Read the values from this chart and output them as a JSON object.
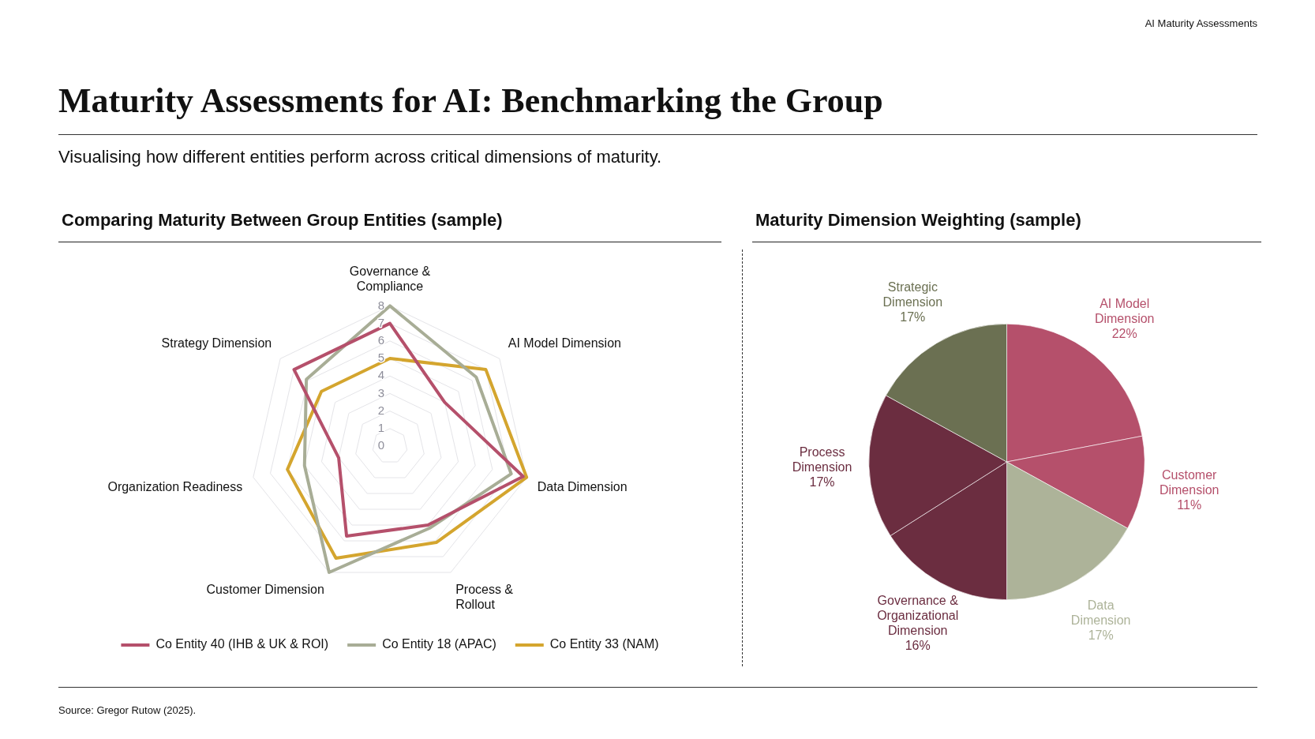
{
  "chart_data": [
    {
      "type": "radar",
      "title": "Comparing Maturity Between Group Entities (sample)",
      "annotations": [
        "AI Maturity Assessments",
        "Maturity Assessments for AI: Benchmarking the Group",
        "Visualising how different entities perform across critical dimensions of maturity.",
        "Source: Gregor Rutow (2025)."
      ],
      "categories": [
        "Governance & Compliance",
        "AI Model Dimension",
        "Data Dimension",
        "Process & Rollout",
        "Customer Dimension",
        "Organization Readiness",
        "Strategy Dimension"
      ],
      "series": [
        {
          "name": "Co Entity 40 (IHB & UK & ROI)",
          "color": "#b5506b",
          "values": [
            7,
            4,
            7.8,
            5,
            5.7,
            3,
            7
          ]
        },
        {
          "name": "Co Entity 18 (APAC)",
          "color": "#a8ad96",
          "values": [
            8,
            6.3,
            7.1,
            5.2,
            8,
            5,
            6.1
          ]
        },
        {
          "name": "Co Entity 33 (NAM)",
          "color": "#d4a52e",
          "values": [
            5,
            7,
            8,
            6.1,
            7.1,
            6,
            5
          ]
        }
      ],
      "ylim": [
        0,
        8
      ],
      "yticks": [
        0,
        1,
        2,
        3,
        4,
        5,
        6,
        7,
        8
      ],
      "grid": true,
      "legend": "bottom",
      "marker": "none",
      "line_style": "solid"
    },
    {
      "type": "pie",
      "title": "Maturity Dimension Weighting (sample)",
      "categories": [
        "AI Model Dimension",
        "Customer Dimension",
        "Data Dimension",
        "Governance & Organizational Dimension",
        "Process Dimension",
        "Strategic Dimension"
      ],
      "values": [
        22,
        11,
        17,
        16,
        17,
        17
      ],
      "colors": [
        "#b5506b",
        "#b5506b",
        "#adb399",
        "#6b2d40",
        "#6b2d40",
        "#6b7052"
      ],
      "value_labels": [
        "22%",
        "11%",
        "17%",
        "16%",
        "17%",
        "17%"
      ]
    }
  ]
}
